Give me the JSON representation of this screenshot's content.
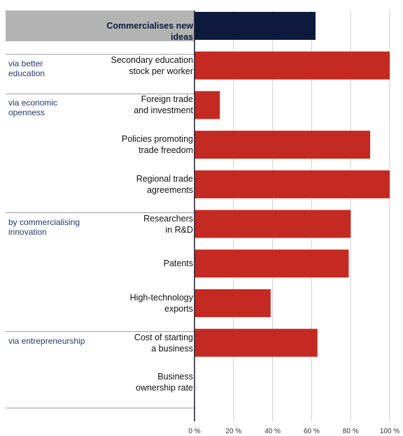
{
  "chart_data": {
    "type": "bar",
    "orientation": "horizontal",
    "xlim": [
      0,
      100
    ],
    "x_ticks": [
      "0 %",
      "20 %",
      "40 %",
      "60 %",
      "80 %",
      "100 %"
    ],
    "grid": true,
    "categories": [
      {
        "label": "Commercialises new ideas",
        "value": 62,
        "highlight": true,
        "color": "#0d1a3e"
      },
      {
        "label": "Secondary education\nstock per worker",
        "value": 100,
        "color": "#c42a22"
      },
      {
        "label": "Foreign trade\nand investment",
        "value": 13,
        "color": "#c42a22"
      },
      {
        "label": "Policies promoting\ntrade freedom",
        "value": 90,
        "color": "#c42a22"
      },
      {
        "label": "Regional trade\nagreements",
        "value": 100,
        "color": "#c42a22"
      },
      {
        "label": "Researchers\nin R&D",
        "value": 80,
        "color": "#c42a22"
      },
      {
        "label": "Patents",
        "value": 79,
        "color": "#c42a22"
      },
      {
        "label": "High-technology\nexports",
        "value": 39,
        "color": "#c42a22"
      },
      {
        "label": "Cost of starting\na business",
        "value": 63,
        "color": "#c42a22"
      },
      {
        "label": "Business\nownership rate",
        "value": null,
        "color": "#c42a22"
      }
    ],
    "groups": [
      {
        "label": "via better\neducation",
        "first": 1,
        "last": 1
      },
      {
        "label": "via economic\nopenness",
        "first": 2,
        "last": 4
      },
      {
        "label": "by commercialising\ninnovation",
        "first": 5,
        "last": 7
      },
      {
        "label": "via entrepreneurship",
        "first": 8,
        "last": 9
      }
    ]
  }
}
